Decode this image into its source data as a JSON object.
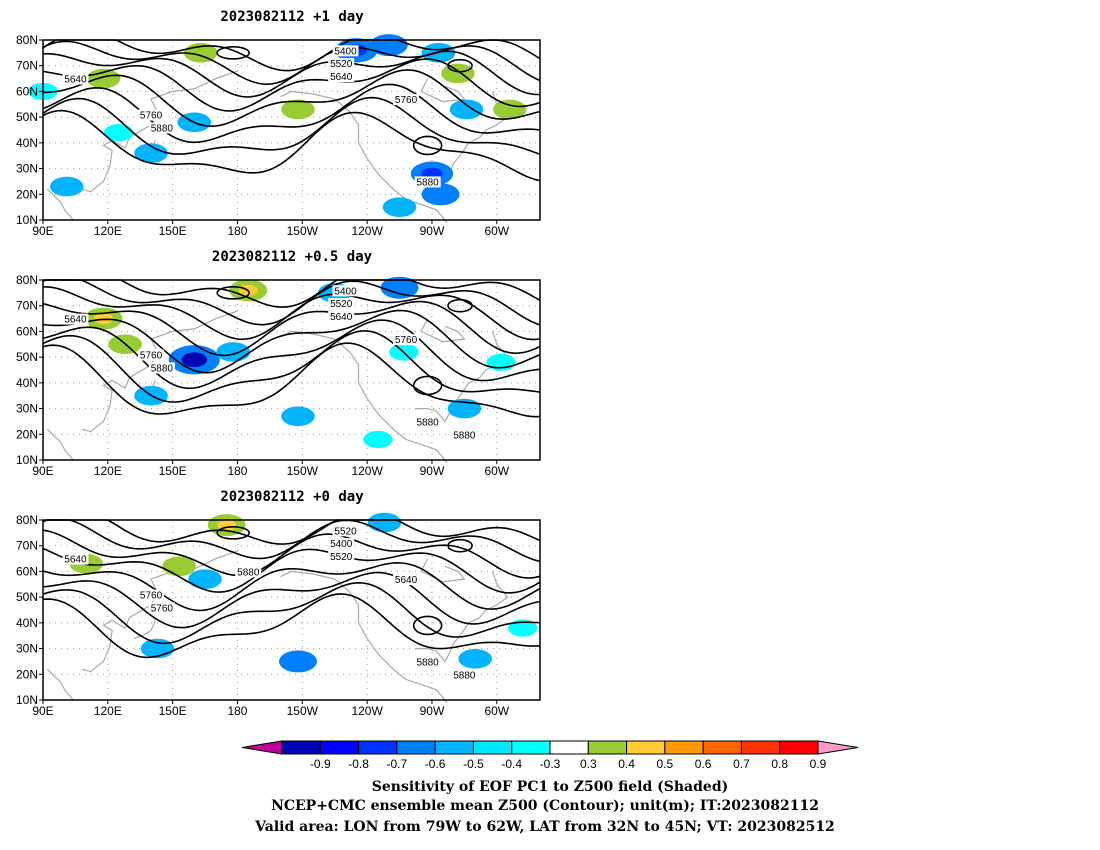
{
  "panels": [
    {
      "title": "2023082112  +1 day",
      "contour_labels": [
        "5400",
        "5520",
        "5640",
        "5640",
        "5760",
        "5760",
        "5880",
        "5880"
      ],
      "anomalies": [
        {
          "lon": 118,
          "lat": 65,
          "value": 0.4
        },
        {
          "lon": 163,
          "lat": 75,
          "value": 0.4
        },
        {
          "lon": 250,
          "lat": 78,
          "value": -0.5
        },
        {
          "lon": 235,
          "lat": 76,
          "value": -0.6
        },
        {
          "lon": 273,
          "lat": 75,
          "value": -0.4
        },
        {
          "lon": 282,
          "lat": 67,
          "value": 0.4
        },
        {
          "lon": 286,
          "lat": 53,
          "value": -0.4
        },
        {
          "lon": 306,
          "lat": 53,
          "value": 0.4
        },
        {
          "lon": 208,
          "lat": 53,
          "value": 0.4
        },
        {
          "lon": 160,
          "lat": 48,
          "value": -0.4
        },
        {
          "lon": 140,
          "lat": 36,
          "value": -0.4
        },
        {
          "lon": 270,
          "lat": 28,
          "value": -0.6
        },
        {
          "lon": 274,
          "lat": 20,
          "value": -0.5
        },
        {
          "lon": 255,
          "lat": 15,
          "value": -0.4
        },
        {
          "lon": 101,
          "lat": 23,
          "value": -0.4
        },
        {
          "lon": 125,
          "lat": 44,
          "value": -0.3
        },
        {
          "lon": 90,
          "lat": 60,
          "value": -0.3
        }
      ]
    },
    {
      "title": "2023082112  +0.5 day",
      "contour_labels": [
        "5400",
        "5520",
        "5640",
        "5640",
        "5760",
        "5760",
        "5880",
        "5880",
        "5880"
      ],
      "anomalies": [
        {
          "lon": 118,
          "lat": 65,
          "value": 0.5
        },
        {
          "lon": 185,
          "lat": 76,
          "value": 0.5
        },
        {
          "lon": 255,
          "lat": 77,
          "value": -0.5
        },
        {
          "lon": 225,
          "lat": 75,
          "value": -0.4
        },
        {
          "lon": 160,
          "lat": 49,
          "value": -0.8
        },
        {
          "lon": 178,
          "lat": 52,
          "value": -0.4
        },
        {
          "lon": 140,
          "lat": 35,
          "value": -0.4
        },
        {
          "lon": 208,
          "lat": 27,
          "value": -0.4
        },
        {
          "lon": 245,
          "lat": 18,
          "value": -0.3
        },
        {
          "lon": 285,
          "lat": 30,
          "value": -0.4
        },
        {
          "lon": 302,
          "lat": 48,
          "value": -0.3
        },
        {
          "lon": 257,
          "lat": 52,
          "value": -0.3
        },
        {
          "lon": 128,
          "lat": 55,
          "value": 0.4
        }
      ]
    },
    {
      "title": "2023082112  +0 day",
      "contour_labels": [
        "5520",
        "5400",
        "5520",
        "5640",
        "5640",
        "5760",
        "5760",
        "5880",
        "5880",
        "5880"
      ],
      "anomalies": [
        {
          "lon": 110,
          "lat": 63,
          "value": 0.4
        },
        {
          "lon": 175,
          "lat": 78,
          "value": 0.5
        },
        {
          "lon": 248,
          "lat": 79,
          "value": -0.4
        },
        {
          "lon": 165,
          "lat": 57,
          "value": -0.4
        },
        {
          "lon": 153,
          "lat": 62,
          "value": 0.4
        },
        {
          "lon": 143,
          "lat": 30,
          "value": -0.4
        },
        {
          "lon": 208,
          "lat": 25,
          "value": -0.5
        },
        {
          "lon": 290,
          "lat": 26,
          "value": -0.4
        },
        {
          "lon": 312,
          "lat": 38,
          "value": -0.3
        }
      ]
    }
  ],
  "axes": {
    "lat_labels": [
      "80N",
      "70N",
      "60N",
      "50N",
      "40N",
      "30N",
      "20N",
      "10N"
    ],
    "lon_labels": [
      "90E",
      "120E",
      "150E",
      "180",
      "150W",
      "120W",
      "90W",
      "60W"
    ],
    "lat_range": [
      10,
      80
    ],
    "lon_range": [
      90,
      320
    ]
  },
  "colorbar": {
    "ticks": [
      "-0.9",
      "-0.8",
      "-0.7",
      "-0.6",
      "-0.5",
      "-0.4",
      "-0.3",
      "0.3",
      "0.4",
      "0.5",
      "0.6",
      "0.7",
      "0.8",
      "0.9"
    ],
    "colors": [
      "#c1009b",
      "#0000b4",
      "#0000ff",
      "#0033ff",
      "#0080ff",
      "#00b4ff",
      "#00e6ff",
      "#00ffff",
      "#ffffff",
      "#99cc33",
      "#ffcc33",
      "#ff9900",
      "#ff6600",
      "#ff3300",
      "#ff0000",
      "#ff99cc"
    ]
  },
  "caption": {
    "line1": "Sensitivity of EOF PC1 to Z500 field (Shaded)",
    "line2": "NCEP+CMC ensemble mean Z500 (Contour); unit(m); IT:2023082112",
    "line3": "Valid area: LON from 79W to 62W, LAT from 32N to 45N; VT: 2023082512"
  }
}
